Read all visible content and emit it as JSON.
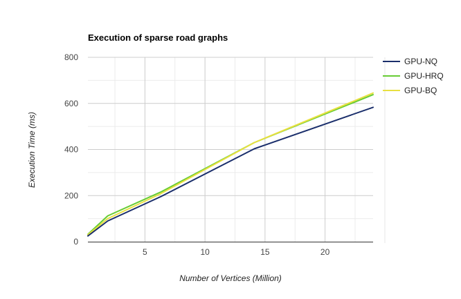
{
  "chart_data": {
    "type": "line",
    "title": "Execution of sparse road graphs",
    "xlabel": "Number of Vertices (Million)",
    "ylabel": "Execution Time (ms)",
    "xlim": [
      0.25,
      24
    ],
    "ylim": [
      0,
      800
    ],
    "x_ticks": [
      5,
      10,
      15,
      20
    ],
    "x_minor_ticks": [
      2.5,
      7.5,
      12.5,
      17.5,
      22.5
    ],
    "y_ticks": [
      0,
      200,
      400,
      600,
      800
    ],
    "y_minor_ticks": [
      100,
      300,
      500,
      700
    ],
    "grid": true,
    "legend_position": "right",
    "series": [
      {
        "name": "GPU-NQ",
        "color": "#1a2e6b",
        "x": [
          0.25,
          1.9,
          6.3,
          14.1,
          24
        ],
        "y": [
          25,
          90,
          195,
          403,
          583
        ]
      },
      {
        "name": "GPU-HRQ",
        "color": "#66cc33",
        "x": [
          0.25,
          1.9,
          6.3,
          14.1,
          24
        ],
        "y": [
          32,
          112,
          215,
          430,
          638
        ]
      },
      {
        "name": "GPU-BQ",
        "color": "#e8e040",
        "x": [
          0.25,
          1.9,
          6.3,
          14.1,
          24
        ],
        "y": [
          30,
          100,
          208,
          430,
          645
        ]
      }
    ]
  }
}
